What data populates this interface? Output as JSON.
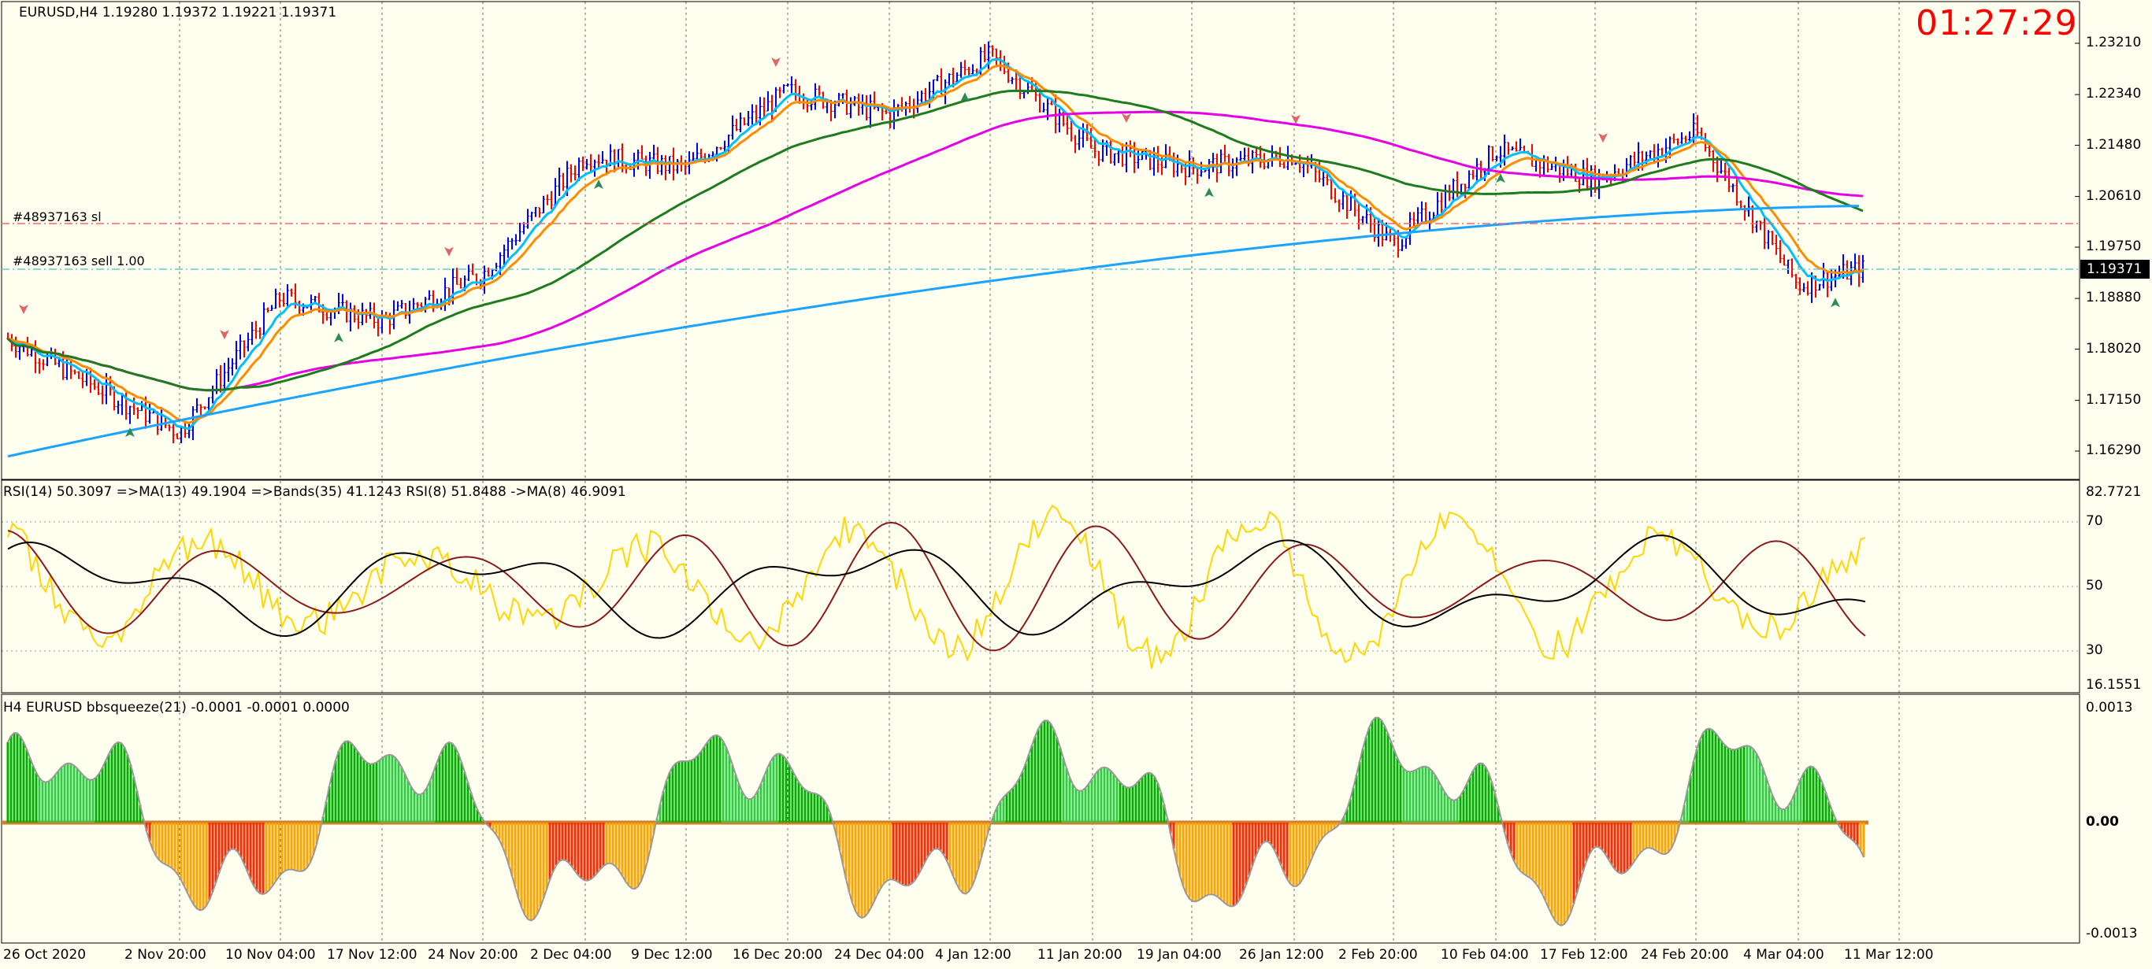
{
  "main": {
    "symbol_header": "EURUSD,H4  1.19280 1.19372 1.19221 1.19371",
    "clock": "01:27:29",
    "order_sl_label": "#48937163 sl",
    "order_sell_label": "#48937163 sell 1.00",
    "price_axis": [
      "1.23210",
      "1.22340",
      "1.21480",
      "1.20610",
      "1.19750",
      "1.18880",
      "1.18020",
      "1.17150",
      "1.16290"
    ],
    "current_price": "1.19371",
    "colors": {
      "background": "#fffff0",
      "bull_bar": "#0000ff",
      "bear_bar": "#ff0000",
      "ma_fast": "#00bfff",
      "ma_orange": "#ff8c00",
      "ma_green": "#1e7b1e",
      "ma_magenta": "#e600e6",
      "ma_long": "#1aa3ff",
      "sl_line": "#ff6666",
      "entry_line": "#66cccc"
    }
  },
  "rsi_panel": {
    "header": "RSI(14) 50.3097  =>MA(13) 49.1904  =>Bands(35) 41.1243  RSI(8) 51.8488  ->MA(8) 46.9091",
    "scale_max": "82.7721",
    "scale_min": "16.1551",
    "levels": [
      "70",
      "50",
      "30"
    ]
  },
  "squeeze_panel": {
    "header": "H4 EURUSD bbsqueeze(21) -0.0001 -0.0001 0.0000",
    "scale_top": "0.0013",
    "scale_mid": "0.00",
    "scale_bottom": "-0.0013"
  },
  "time_axis": [
    "26 Oct 2020",
    "2 Nov 20:00",
    "10 Nov 04:00",
    "17 Nov 12:00",
    "24 Nov 20:00",
    "2 Dec 04:00",
    "9 Dec 12:00",
    "16 Dec 20:00",
    "24 Dec 04:00",
    "4 Jan 12:00",
    "11 Jan 20:00",
    "19 Jan 04:00",
    "26 Jan 12:00",
    "2 Feb 20:00",
    "10 Feb 04:00",
    "17 Feb 12:00",
    "24 Feb 20:00",
    "4 Mar 04:00",
    "11 Mar 12:00"
  ],
  "chart_data": {
    "type": "line",
    "title": "EURUSD,H4",
    "x": [
      "26 Oct 2020",
      "2 Nov 20:00",
      "10 Nov 04:00",
      "17 Nov 12:00",
      "24 Nov 20:00",
      "2 Dec 04:00",
      "9 Dec 12:00",
      "16 Dec 20:00",
      "24 Dec 04:00",
      "4 Jan 12:00",
      "11 Jan 20:00",
      "19 Jan 04:00",
      "26 Jan 12:00",
      "2 Feb 20:00",
      "10 Feb 04:00",
      "17 Feb 12:00",
      "24 Feb 20:00",
      "4 Mar 04:00",
      "11 Mar 12:00"
    ],
    "ylim": [
      1.16,
      1.236
    ],
    "series": [
      {
        "name": "EURUSD",
        "values": [
          1.182,
          1.166,
          1.189,
          1.185,
          1.193,
          1.213,
          1.211,
          1.224,
          1.22,
          1.23,
          1.214,
          1.211,
          1.213,
          1.198,
          1.214,
          1.209,
          1.217,
          1.191,
          1.194
        ]
      }
    ]
  }
}
